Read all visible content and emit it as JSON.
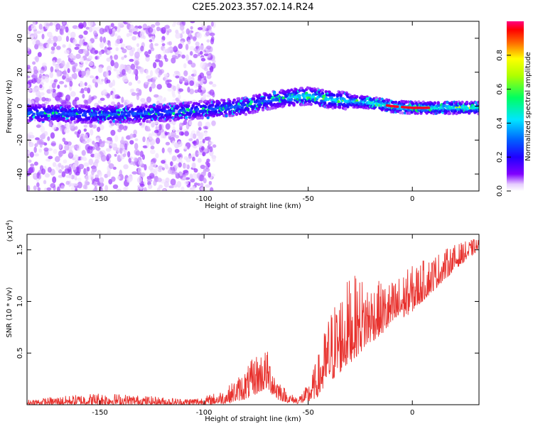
{
  "figure_title": "C2E5.2023.357.02.14.R24",
  "colors": {
    "snr_line": "#e8322e",
    "background": "#ffffff",
    "axis": "#000000",
    "colormap": [
      "#ffffff",
      "#e6ccff",
      "#8000ff",
      "#2000ff",
      "#00e5ff",
      "#00ff40",
      "#ffff00",
      "#ff0000",
      "#ff0080"
    ]
  },
  "chart_data": [
    {
      "type": "heatmap",
      "name": "spectrogram",
      "xlabel": "Height of straight line (km)",
      "ylabel": "Frequency (Hz)",
      "xlim": [
        -185,
        32
      ],
      "ylim": [
        -50,
        50
      ],
      "x_ticks": [
        -150,
        -100,
        -50,
        0
      ],
      "y_ticks": [
        -40,
        -20,
        0,
        20,
        40
      ],
      "colorbar": {
        "label": "Normalized spectral amplitude",
        "range": [
          0,
          1
        ],
        "ticks": [
          "0.0",
          "0.2",
          "0.4",
          "0.6",
          "0.8"
        ],
        "tick_values": [
          0,
          0.2,
          0.4,
          0.6,
          0.8
        ]
      },
      "ridge": {
        "description_points_x": [
          -185,
          -150,
          -120,
          -100,
          -80,
          -70,
          -60,
          -50,
          -40,
          -30,
          -20,
          -10,
          0,
          10,
          32
        ],
        "center_frequency": [
          -4,
          -5,
          -4,
          -2,
          0,
          3,
          5,
          6,
          4,
          3,
          2,
          0,
          -1,
          -1,
          -1
        ]
      }
    },
    {
      "type": "line",
      "name": "snr",
      "xlabel": "Height of straight line (km)",
      "ylabel": "SNR (10 * v/v)",
      "yscale_label": "(x10^4)",
      "xlim": [
        -185,
        32
      ],
      "ylim": [
        0,
        1.65
      ],
      "x_ticks": [
        -150,
        -100,
        -50,
        0
      ],
      "y_ticks": [
        0.5,
        1.0,
        1.5
      ],
      "y_tick_labels": [
        "0.5",
        "1.0",
        "1.5"
      ],
      "envelope": {
        "x": [
          -185,
          -150,
          -110,
          -100,
          -90,
          -80,
          -75,
          -70,
          -65,
          -60,
          -55,
          -50,
          -45,
          -40,
          -35,
          -30,
          -25,
          -20,
          -10,
          0,
          10,
          20,
          32
        ],
        "low": [
          0.0,
          0.0,
          0.0,
          0.0,
          0.01,
          0.05,
          0.1,
          0.15,
          0.05,
          0.02,
          0.01,
          0.02,
          0.08,
          0.2,
          0.3,
          0.4,
          0.5,
          0.6,
          0.75,
          0.9,
          1.1,
          1.3,
          1.5
        ],
        "high": [
          0.05,
          0.12,
          0.06,
          0.08,
          0.15,
          0.35,
          0.5,
          0.55,
          0.3,
          0.12,
          0.08,
          0.2,
          0.5,
          0.9,
          1.1,
          1.25,
          1.25,
          1.2,
          1.2,
          1.35,
          1.45,
          1.55,
          1.62
        ]
      }
    }
  ]
}
